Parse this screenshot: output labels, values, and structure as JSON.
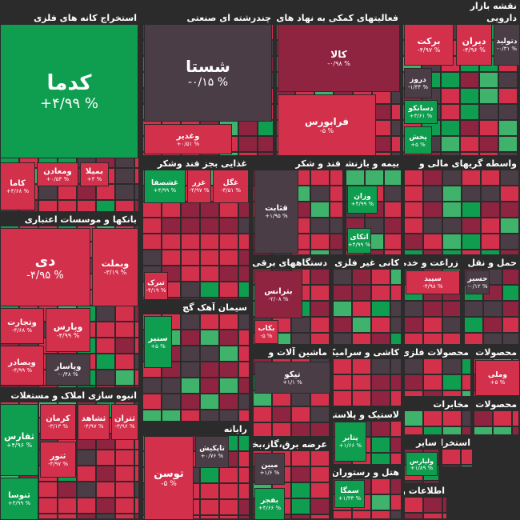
{
  "header": {
    "title": "نقشه بازار"
  },
  "sectors": [
    {
      "title": "استخراج کانه های فلزی",
      "tiles": [
        {
          "symbol": "کدما",
          "change": "+۴/۹۹ %"
        },
        {
          "symbol": "بمیلا",
          "change": "+۳ %"
        },
        {
          "symbol": "ومعادن",
          "change": "+۰/۵۳ %"
        },
        {
          "symbol": "کاما",
          "change": "+۴/۶۸ %"
        }
      ]
    },
    {
      "title": "بانکها و موسسات اعتباری",
      "tiles": [
        {
          "symbol": "دی",
          "change": "-۴/۹۵ %"
        },
        {
          "symbol": "وبملت",
          "change": "-۳/۱۹ %"
        },
        {
          "symbol": "وتجارت",
          "change": "-۴/۶۸ %"
        },
        {
          "symbol": "وپارس",
          "change": "-۴/۹۹ %"
        },
        {
          "symbol": "وبصادر",
          "change": "-۴/۹۹ %"
        },
        {
          "symbol": "وپاسار",
          "change": "-۰/۴۸ %"
        }
      ]
    },
    {
      "title": "انبوه سازی املاک و مستغلات",
      "tiles": [
        {
          "symbol": "ثفارس",
          "change": "+۴/۹۶ %"
        },
        {
          "symbol": "کرمان",
          "change": "-۳/۱۳ %"
        },
        {
          "symbol": "ثشاهد",
          "change": "-۴/۹۷ %"
        },
        {
          "symbol": "ثتران",
          "change": "-۳/۹۶ %"
        },
        {
          "symbol": "ثنور",
          "change": "-۴/۹۷ %"
        },
        {
          "symbol": "ثنوسا",
          "change": "+۳/۹۹ %"
        }
      ]
    },
    {
      "title": "چندرشته ای صنعتی",
      "tiles": [
        {
          "symbol": "شستا",
          "change": "-۰/۱۵ %"
        },
        {
          "symbol": "وغدیر",
          "change": "+۰/۵۱ %"
        }
      ]
    },
    {
      "title": "فعالیتهای کمکی به نهاد های مالی",
      "tiles": [
        {
          "symbol": "کالا",
          "change": "-۰/۹۸ %"
        },
        {
          "symbol": "فرابورس",
          "change": "-۵ %"
        }
      ]
    },
    {
      "title": "دارویی",
      "tiles": [
        {
          "symbol": "برکت",
          "change": "-۴/۹۷ %"
        },
        {
          "symbol": "دیران",
          "change": "-۴/۹۶ %"
        },
        {
          "symbol": "دتولید",
          "change": "-۰/۳۱ %"
        },
        {
          "symbol": "دروز",
          "change": "-۱/۳۴ %"
        },
        {
          "symbol": "دسانکو",
          "change": "+۳/۶۱ %"
        },
        {
          "symbol": "پخش",
          "change": "+۵ %"
        }
      ]
    },
    {
      "title": "غذایی بجز قند وشکر",
      "tiles": [
        {
          "symbol": "غشصفا",
          "change": "+۴/۹۹ %"
        },
        {
          "symbol": "غزر",
          "change": "-۴/۹۷ %"
        },
        {
          "symbol": "غگل",
          "change": "-۳/۵۱ %"
        },
        {
          "symbol": "تبرک",
          "change": "-۴/۱۹ %"
        }
      ]
    },
    {
      "title": "سیمان آهک گچ",
      "tiles": [
        {
          "symbol": "سنیر",
          "change": "+۵ %"
        }
      ]
    },
    {
      "title": "رایانه",
      "tiles": [
        {
          "symbol": "توسن",
          "change": "-۵ %"
        },
        {
          "symbol": "تاپکیش",
          "change": "+۰/۷۶ %"
        }
      ]
    },
    {
      "title": "قند و شکر",
      "tiles": [
        {
          "symbol": "قثابت",
          "change": "+۱/۹۵ %"
        }
      ]
    },
    {
      "title": "دستگاههای برقی",
      "tiles": [
        {
          "symbol": "بترانس",
          "change": "-۲/۰۸ %"
        },
        {
          "symbol": "بکاب",
          "change": "-۵ %"
        }
      ]
    },
    {
      "title": "ماشین آلات و",
      "tiles": [
        {
          "symbol": "تیکو",
          "change": "+۱/۱ %"
        }
      ]
    },
    {
      "title": "عرضه برق،گاز،بخار و",
      "tiles": [
        {
          "symbol": "مبین",
          "change": "+۱/۶ %"
        },
        {
          "symbol": "بفجر",
          "change": "+۴/۶۶ %"
        }
      ]
    },
    {
      "title": "بیمه و بازنشستگی",
      "tiles": [
        {
          "symbol": "وزان",
          "change": "+۴/۹۹ %"
        },
        {
          "symbol": "اتکای",
          "change": "+۴/۹۹ %"
        }
      ]
    },
    {
      "title": "واسطه گریهای مالی و",
      "tiles": []
    },
    {
      "title": "کانی غیر فلزی",
      "tiles": []
    },
    {
      "title": "زراعت و خدمات",
      "tiles": [
        {
          "symbol": "سپید",
          "change": "-۴/۹۸ %"
        }
      ]
    },
    {
      "title": "حمل و نقل",
      "tiles": [
        {
          "symbol": "حسیر",
          "change": "-۰/۱۲ %"
        }
      ]
    },
    {
      "title": "کاشی و سرامیک",
      "tiles": []
    },
    {
      "title": "لاستیک و پلاستیک",
      "tiles": [
        {
          "symbol": "پتایر",
          "change": "+۱/۶۶ %"
        }
      ]
    },
    {
      "title": "هتل و رستوران",
      "tiles": [
        {
          "symbol": "سمگا",
          "change": "+۱/۳۳ %"
        }
      ]
    },
    {
      "title": "محصولات فلزی",
      "tiles": []
    },
    {
      "title": "محصولات",
      "tiles": [
        {
          "symbol": "وملی",
          "change": "+۵ %"
        }
      ]
    },
    {
      "title": "مخابرات",
      "tiles": []
    },
    {
      "title": "محصولات",
      "tiles": []
    },
    {
      "title": "سایر",
      "tiles": [
        {
          "symbol": "ولپارس",
          "change": "+۱/۸۹ %"
        }
      ]
    },
    {
      "title": "استخراج",
      "tiles": []
    },
    {
      "title": "اطلاعات و",
      "tiles": []
    }
  ]
}
